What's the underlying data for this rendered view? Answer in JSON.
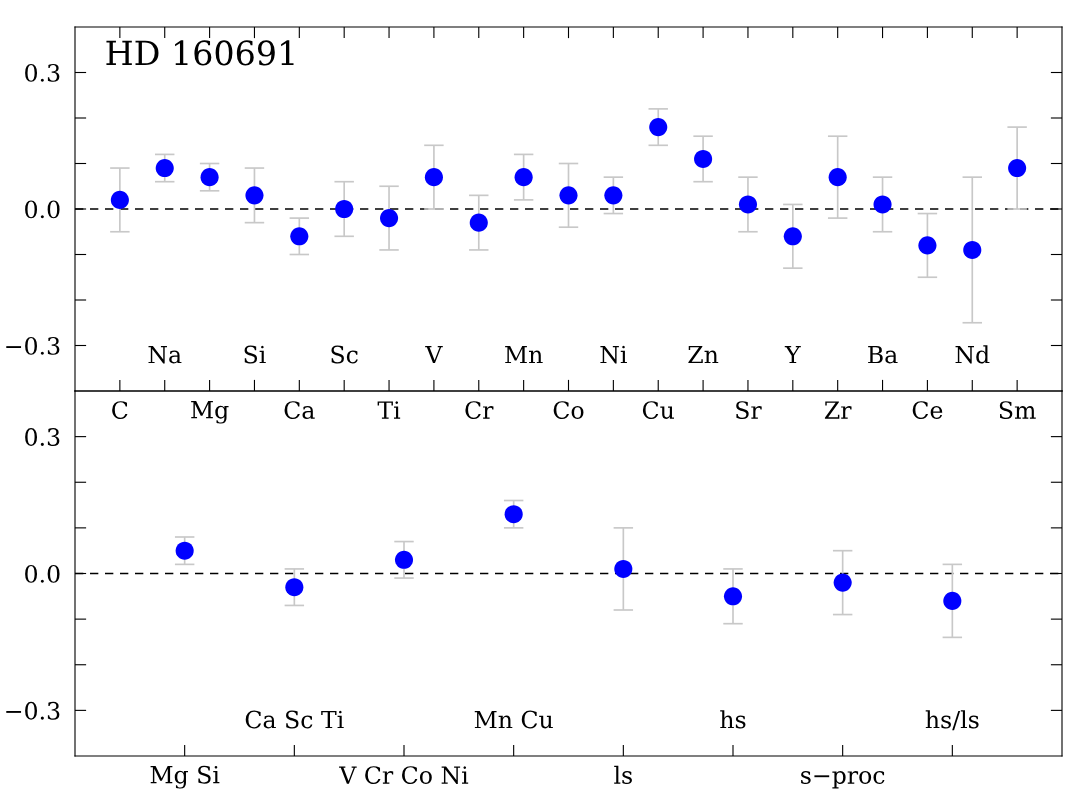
{
  "chart_data": [
    {
      "type": "scatter",
      "annotations": [
        "HD 160691"
      ],
      "categories": [
        "C",
        "Na",
        "Mg",
        "Si",
        "Ca",
        "Sc",
        "Ti",
        "V",
        "Cr",
        "Mn",
        "Co",
        "Ni",
        "Cu",
        "Zn",
        "Sr",
        "Y",
        "Zr",
        "Ba",
        "Ce",
        "Nd",
        "Sm"
      ],
      "values": [
        0.02,
        0.09,
        0.07,
        0.03,
        -0.06,
        0.0,
        -0.02,
        0.07,
        -0.03,
        0.07,
        0.03,
        0.03,
        0.18,
        0.11,
        0.01,
        -0.06,
        0.07,
        0.01,
        -0.08,
        -0.09,
        0.09
      ],
      "errors": [
        0.07,
        0.03,
        0.03,
        0.06,
        0.04,
        0.06,
        0.07,
        0.07,
        0.06,
        0.05,
        0.07,
        0.04,
        0.04,
        0.05,
        0.06,
        0.07,
        0.09,
        0.06,
        0.07,
        0.16,
        0.09
      ],
      "color": "#0000ff",
      "marker": "circle",
      "ylim": [
        -0.4,
        0.4
      ],
      "yticks": [
        {
          "value": -0.3,
          "label": "−0.3"
        },
        {
          "value": -0.2,
          "label": null
        },
        {
          "value": -0.1,
          "label": null
        },
        {
          "value": 0.0,
          "label": "0.0"
        },
        {
          "value": 0.1,
          "label": null
        },
        {
          "value": 0.2,
          "label": null
        },
        {
          "value": 0.3,
          "label": "0.3"
        }
      ],
      "ref_lines": [
        {
          "axis": "y",
          "value": 0,
          "color": "#000000",
          "line_style": "dashed"
        }
      ],
      "grid": false,
      "legend": false
    },
    {
      "type": "scatter",
      "categories": [
        "Mg Si",
        "Ca Sc Ti",
        "V Cr Co Ni",
        "Mn Cu",
        "ls",
        "hs",
        "s−proc",
        "hs/ls"
      ],
      "values": [
        0.05,
        -0.03,
        0.03,
        0.13,
        0.01,
        -0.05,
        -0.02,
        -0.06
      ],
      "errors": [
        0.03,
        0.04,
        0.04,
        0.03,
        0.09,
        0.06,
        0.07,
        0.08
      ],
      "color": "#0000ff",
      "marker": "circle",
      "ylim": [
        -0.4,
        0.4
      ],
      "yticks": [
        {
          "value": -0.3,
          "label": "−0.3"
        },
        {
          "value": -0.2,
          "label": null
        },
        {
          "value": -0.1,
          "label": null
        },
        {
          "value": 0.0,
          "label": "0.0"
        },
        {
          "value": 0.1,
          "label": null
        },
        {
          "value": 0.2,
          "label": null
        },
        {
          "value": 0.3,
          "label": "0.3"
        }
      ],
      "ref_lines": [
        {
          "axis": "y",
          "value": 0,
          "color": "#000000",
          "line_style": "dashed"
        }
      ],
      "grid": false,
      "legend": false
    }
  ]
}
